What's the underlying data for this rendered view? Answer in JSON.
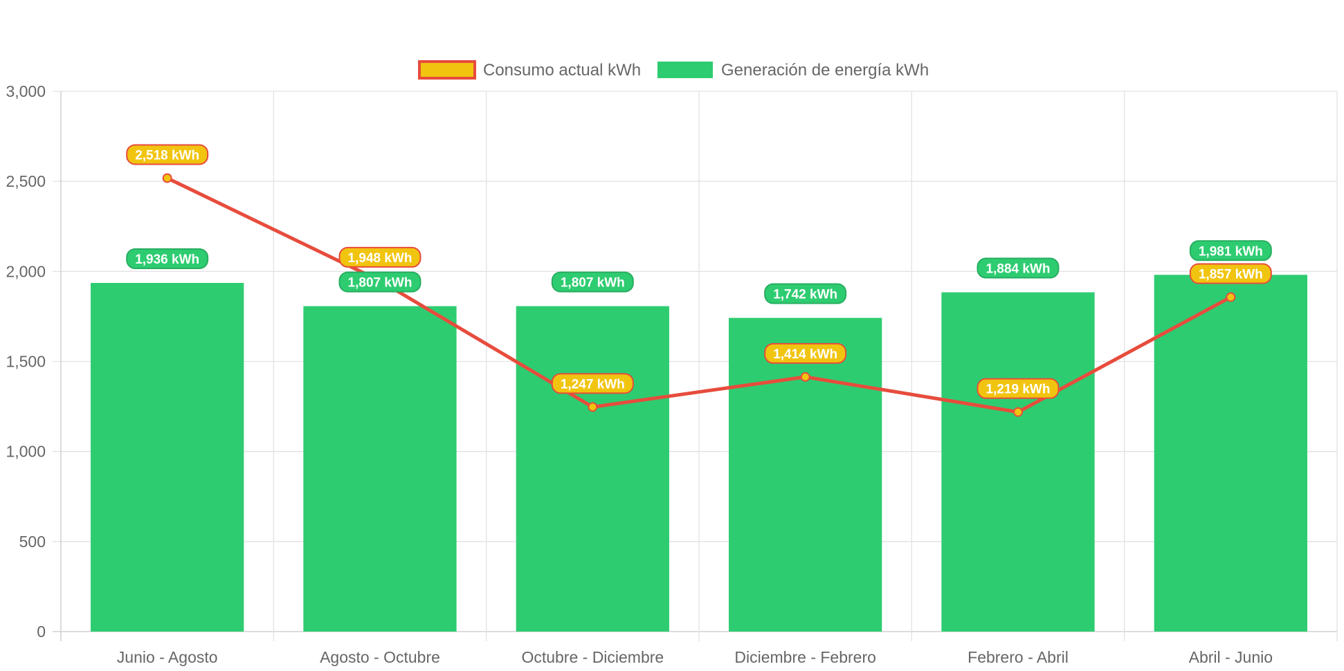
{
  "chart_data": {
    "type": "bar",
    "categories": [
      "Junio - Agosto",
      "Agosto - Octubre",
      "Octubre - Diciembre",
      "Diciembre - Febrero",
      "Febrero - Abril",
      "Abril - Junio"
    ],
    "series": [
      {
        "name": "Consumo actual kWh",
        "type": "line",
        "values": [
          2518,
          1948,
          1247,
          1414,
          1219,
          1857
        ],
        "labels": [
          "2,518 kWh",
          "1,948 kWh",
          "1,247 kWh",
          "1,414 kWh",
          "1,219 kWh",
          "1,857 kWh"
        ],
        "color": "#e74c3c",
        "fill_color": "#f1c40f"
      },
      {
        "name": "Generación de energía kWh",
        "type": "bar",
        "values": [
          1936,
          1807,
          1807,
          1742,
          1884,
          1981
        ],
        "labels": [
          "1,936 kWh",
          "1,807 kWh",
          "1,807 kWh",
          "1,742 kWh",
          "1,884 kWh",
          "1,981 kWh"
        ],
        "color": "#2ecc71",
        "border_color": "#27ae60"
      }
    ],
    "y_ticks": [
      "0",
      "500",
      "1,000",
      "1,500",
      "2,000",
      "2,500",
      "3,000"
    ],
    "ylim": [
      0,
      3000
    ],
    "grid": true,
    "legend_position": "top"
  }
}
